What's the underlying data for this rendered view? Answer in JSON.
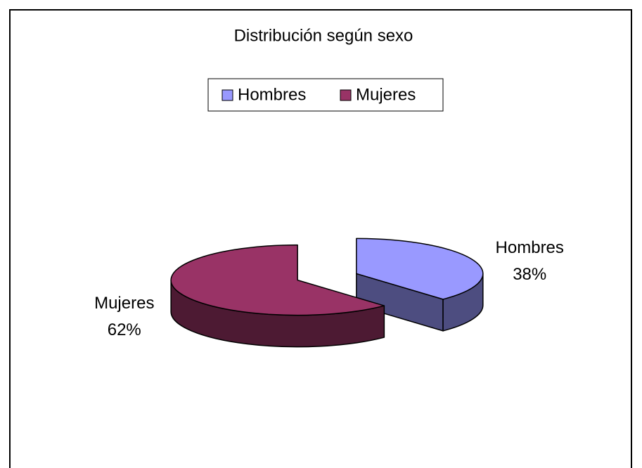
{
  "chart_data": {
    "type": "pie",
    "title": "Distribución según sexo",
    "categories": [
      "Hombres",
      "Mujeres"
    ],
    "values": [
      38,
      62
    ],
    "value_labels": [
      "38%",
      "62%"
    ],
    "colors": [
      "#9999ff",
      "#993366"
    ],
    "legend": "top",
    "three_d": true,
    "exploded": true
  }
}
